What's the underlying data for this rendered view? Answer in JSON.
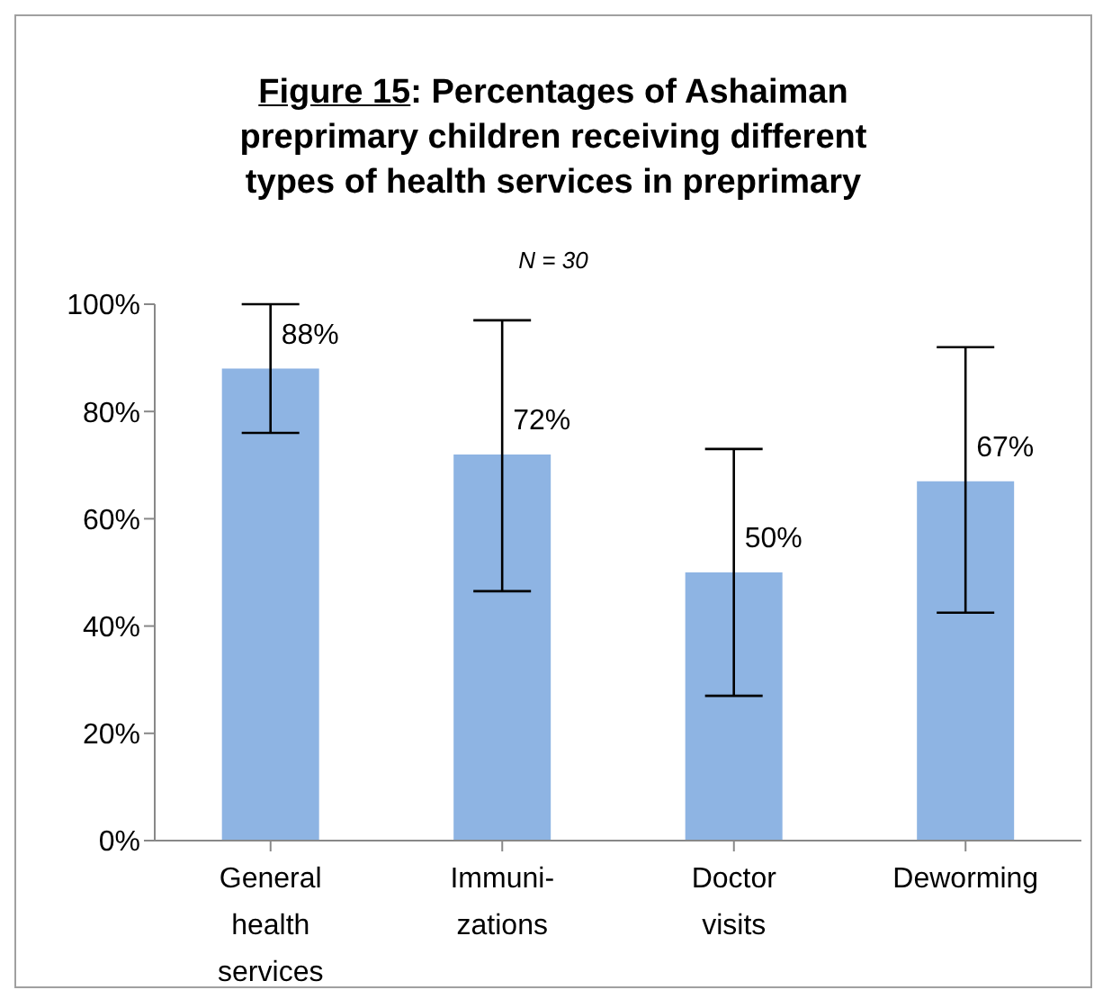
{
  "chart_data": {
    "type": "bar",
    "title": "Figure 15: Percentages of Ashaiman preprimary children receiving different types of health services in preprimary",
    "subtitle": "N = 30",
    "categories": [
      "General health services",
      "Immuni-zations",
      "Doctor visits",
      "Deworming"
    ],
    "values": [
      88,
      72,
      50,
      67
    ],
    "color": "#8eb4e3",
    "errors": [
      [
        76,
        100
      ],
      [
        46.5,
        97
      ],
      [
        27,
        73
      ],
      [
        42.5,
        92
      ]
    ],
    "value_labels": [
      "88%",
      "72%",
      "50%",
      "67%"
    ],
    "ylim": [
      0,
      100
    ],
    "yticks": [
      {
        "value": 0,
        "label": "0%"
      },
      {
        "value": 20,
        "label": "20%"
      },
      {
        "value": 40,
        "label": "40%"
      },
      {
        "value": 60,
        "label": "60%"
      },
      {
        "value": 80,
        "label": "80%"
      },
      {
        "value": 100,
        "label": "100%"
      }
    ],
    "grid": false,
    "legend": false
  }
}
